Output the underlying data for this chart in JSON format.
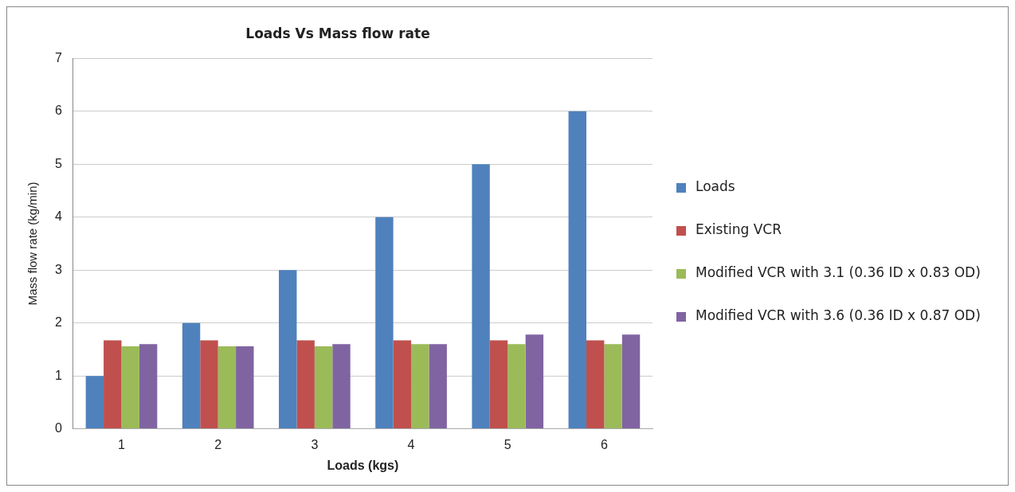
{
  "chart_data": {
    "type": "bar",
    "title": "Loads Vs Mass flow rate",
    "xlabel": "Loads (kgs)",
    "ylabel": "Mass flow rate (kg/min)",
    "categories": [
      "1",
      "2",
      "3",
      "4",
      "5",
      "6"
    ],
    "series": [
      {
        "name": "Loads",
        "color": "#4f81bd",
        "values": [
          1,
          2,
          3,
          4,
          5,
          6
        ]
      },
      {
        "name": "Existing VCR",
        "color": "#c0504d",
        "values": [
          1.67,
          1.67,
          1.67,
          1.67,
          1.67,
          1.67
        ]
      },
      {
        "name": "Modified VCR with 3.1 (0.36 ID x 0.83 OD)",
        "color": "#9bbb59",
        "values": [
          1.56,
          1.56,
          1.56,
          1.6,
          1.6,
          1.6
        ]
      },
      {
        "name": "Modified VCR with 3.6 (0.36 ID x 0.87 OD)",
        "color": "#8064a2",
        "values": [
          1.6,
          1.56,
          1.6,
          1.6,
          1.78,
          1.78
        ]
      }
    ],
    "ylim": [
      0,
      7
    ],
    "yticks": [
      0,
      1,
      2,
      3,
      4,
      5,
      6,
      7
    ],
    "grid": "y",
    "legend": "right"
  }
}
